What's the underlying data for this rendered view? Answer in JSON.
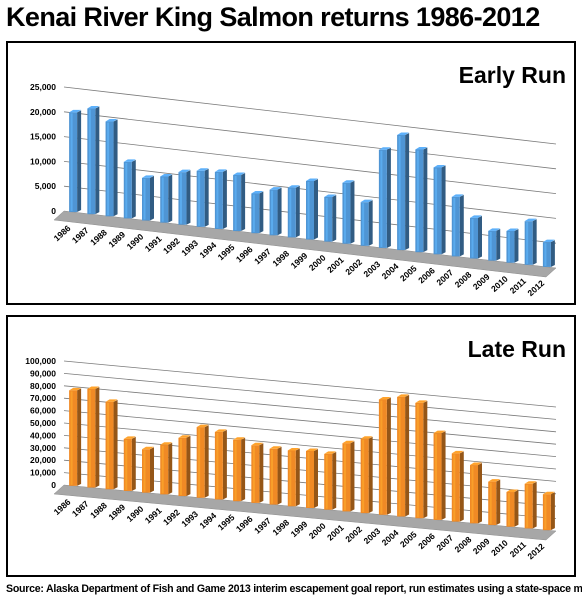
{
  "title": "Kenai River King Salmon returns 1986-2012",
  "source": "Source: Alaska Department of Fish and Game 2013 interim escapement goal report, run estimates using a state-space model",
  "chart_data": [
    {
      "type": "bar",
      "title": "Early Run",
      "categories": [
        "1986",
        "1987",
        "1988",
        "1989",
        "1990",
        "1991",
        "1992",
        "1993",
        "1994",
        "1995",
        "1996",
        "1997",
        "1998",
        "1999",
        "2000",
        "2001",
        "2002",
        "2003",
        "2004",
        "2005",
        "2006",
        "2007",
        "2008",
        "2009",
        "2010",
        "2011",
        "2012"
      ],
      "values": [
        20100,
        21300,
        19100,
        11400,
        8600,
        9300,
        10600,
        11300,
        11500,
        11300,
        8000,
        9200,
        10000,
        11800,
        9000,
        12300,
        8800,
        19800,
        23200,
        20700,
        17500,
        12000,
        8200,
        6000,
        6400,
        8800,
        5000
      ],
      "ylim": [
        0,
        25000
      ],
      "yticks": [
        "0",
        "5,000",
        "10,000",
        "15,000",
        "20,000",
        "25,000"
      ],
      "grid": true,
      "color": "#4f95d4"
    },
    {
      "type": "bar",
      "title": "Late Run",
      "categories": [
        "1986",
        "1987",
        "1988",
        "1989",
        "1990",
        "1991",
        "1992",
        "1993",
        "1994",
        "1995",
        "1996",
        "1997",
        "1998",
        "1999",
        "2000",
        "2001",
        "2002",
        "2003",
        "2004",
        "2005",
        "2006",
        "2007",
        "2008",
        "2009",
        "2010",
        "2011",
        "2012"
      ],
      "values": [
        77000,
        79500,
        70500,
        42000,
        35000,
        40000,
        47000,
        57000,
        54500,
        49500,
        46500,
        45000,
        45000,
        46000,
        45000,
        55000,
        60000,
        93000,
        96500,
        93000,
        70000,
        55000,
        47000,
        35000,
        28000,
        36000,
        29000
      ],
      "ylim": [
        0,
        100000
      ],
      "yticks": [
        "0",
        "10,000",
        "20,000",
        "30,000",
        "40,000",
        "50,000",
        "60,000",
        "70,000",
        "80,000",
        "90,000",
        "100,000"
      ],
      "grid": true,
      "color": "#f08a25"
    }
  ]
}
